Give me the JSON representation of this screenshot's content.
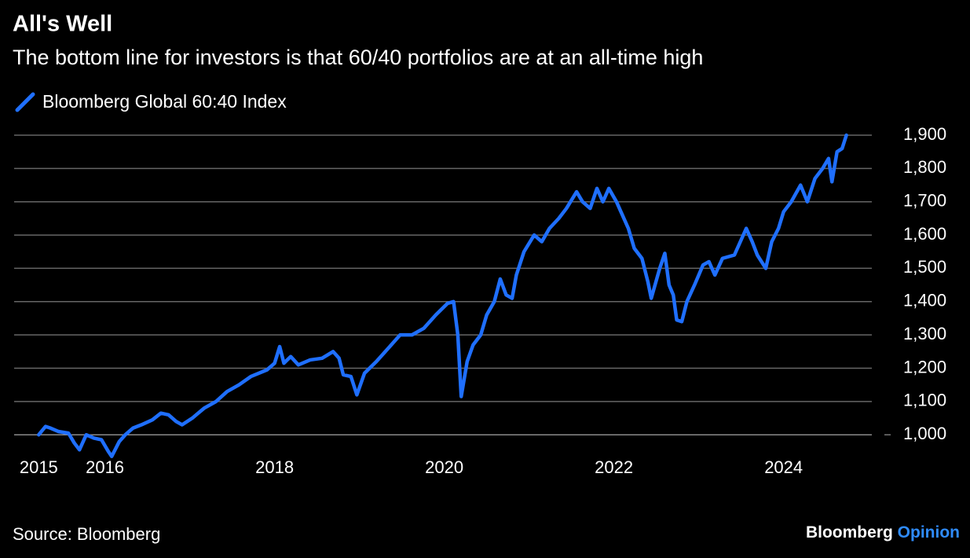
{
  "chart_data": {
    "type": "line",
    "title": "All's Well",
    "subtitle": "The bottom line for investors is that 60/40 portfolios are at an all-time high",
    "source": "Source: Bloomberg",
    "logo": "Bloomberg",
    "logo_accent": "Opinion",
    "grid": true,
    "x": [
      2015.22,
      2015.3,
      2015.36,
      2015.45,
      2015.57,
      2015.64,
      2015.7,
      2015.78,
      2015.87,
      2015.96,
      2016.04,
      2016.08,
      2016.17,
      2016.24,
      2016.33,
      2016.43,
      2016.56,
      2016.66,
      2016.75,
      2016.84,
      2016.91,
      2017.03,
      2017.17,
      2017.31,
      2017.44,
      2017.58,
      2017.72,
      2017.91,
      2018.0,
      2018.06,
      2018.11,
      2018.19,
      2018.28,
      2018.42,
      2018.56,
      2018.69,
      2018.76,
      2018.81,
      2018.9,
      2018.97,
      2019.06,
      2019.2,
      2019.34,
      2019.48,
      2019.62,
      2019.76,
      2019.9,
      2020.04,
      2020.11,
      2020.16,
      2020.2,
      2020.27,
      2020.34,
      2020.43,
      2020.5,
      2020.59,
      2020.66,
      2020.73,
      2020.8,
      2020.85,
      2020.94,
      2021.06,
      2021.15,
      2021.24,
      2021.35,
      2021.44,
      2021.56,
      2021.63,
      2021.72,
      2021.8,
      2021.87,
      2021.94,
      2022.03,
      2022.1,
      2022.17,
      2022.24,
      2022.33,
      2022.4,
      2022.44,
      2022.54,
      2022.6,
      2022.65,
      2022.7,
      2022.74,
      2022.8,
      2022.86,
      2022.95,
      2023.05,
      2023.12,
      2023.19,
      2023.28,
      2023.42,
      2023.56,
      2023.63,
      2023.69,
      2023.79,
      2023.86,
      2023.94,
      2024.0,
      2024.09,
      2024.2,
      2024.28,
      2024.37,
      2024.46,
      2024.53,
      2024.57,
      2024.63,
      2024.69,
      2024.74
    ],
    "series": [
      {
        "name": "Bloomberg Global 60:40 Index",
        "color": "#1f6fff",
        "values": [
          1000,
          1025,
          1020,
          1010,
          1005,
          975,
          955,
          1000,
          990,
          985,
          950,
          935,
          980,
          1000,
          1020,
          1030,
          1045,
          1065,
          1060,
          1040,
          1030,
          1050,
          1080,
          1100,
          1130,
          1150,
          1175,
          1195,
          1215,
          1265,
          1215,
          1235,
          1210,
          1225,
          1230,
          1250,
          1230,
          1180,
          1175,
          1120,
          1185,
          1220,
          1260,
          1300,
          1300,
          1320,
          1360,
          1395,
          1400,
          1300,
          1115,
          1220,
          1270,
          1300,
          1360,
          1400,
          1468,
          1420,
          1410,
          1480,
          1550,
          1600,
          1580,
          1620,
          1650,
          1680,
          1730,
          1700,
          1680,
          1740,
          1700,
          1740,
          1700,
          1660,
          1620,
          1560,
          1530,
          1460,
          1410,
          1500,
          1545,
          1450,
          1420,
          1345,
          1340,
          1400,
          1450,
          1510,
          1520,
          1480,
          1530,
          1540,
          1620,
          1580,
          1540,
          1500,
          1580,
          1620,
          1670,
          1700,
          1750,
          1700,
          1770,
          1800,
          1830,
          1760,
          1850,
          1860,
          1900
        ]
      }
    ],
    "xlim": [
      2014.93,
      2025.04
    ],
    "xticks": [
      {
        "value": 2015.22,
        "label": "2015"
      },
      2016,
      2018,
      2020,
      2022,
      2024
    ],
    "ylim": [
      925,
      1900
    ],
    "yticks": [
      {
        "value": 1000,
        "label": "1,000"
      },
      {
        "value": 1100,
        "label": "1,100"
      },
      {
        "value": 1200,
        "label": "1,200"
      },
      {
        "value": 1300,
        "label": "1,300"
      },
      {
        "value": 1400,
        "label": "1,400"
      },
      {
        "value": 1500,
        "label": "1,500"
      },
      {
        "value": 1600,
        "label": "1,600"
      },
      {
        "value": 1700,
        "label": "1,700"
      },
      {
        "value": 1800,
        "label": "1,800"
      },
      {
        "value": 1900,
        "label": "1,900"
      }
    ]
  }
}
